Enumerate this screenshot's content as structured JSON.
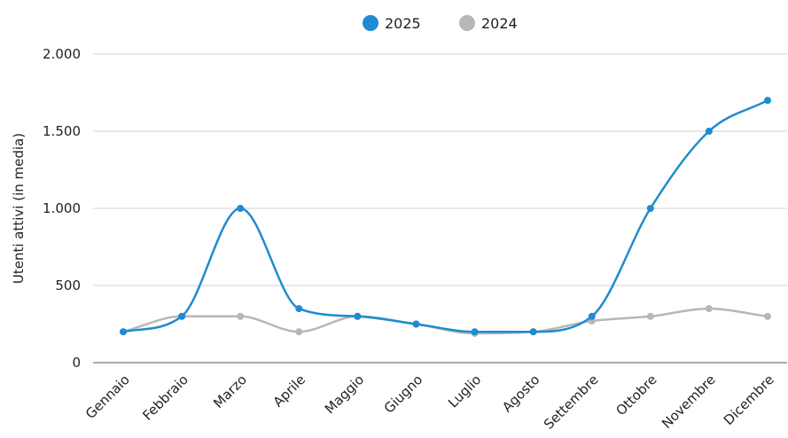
{
  "chart_data": {
    "type": "line",
    "categories": [
      "Gennaio",
      "Febbraio",
      "Marzo",
      "Aprile",
      "Maggio",
      "Giugno",
      "Luglio",
      "Agosto",
      "Settembre",
      "Ottobre",
      "Novembre",
      "Dicembre"
    ],
    "series": [
      {
        "name": "2025",
        "color": "#1f8bd0",
        "values": [
          200,
          300,
          1000,
          350,
          300,
          250,
          200,
          200,
          300,
          1000,
          1500,
          1700
        ]
      },
      {
        "name": "2024",
        "color": "#b7b7b7",
        "values": [
          200,
          300,
          300,
          200,
          300,
          250,
          190,
          200,
          270,
          300,
          350,
          300
        ]
      }
    ],
    "ylabel": "Utenti attivi (in media)",
    "ylim": [
      0,
      2000
    ],
    "yticks": [
      0,
      500,
      1000,
      1500,
      2000
    ],
    "ytick_labels": [
      "0",
      "500",
      "1.000",
      "1.500",
      "2.000"
    ],
    "grid": true,
    "legend_position": "top-center"
  }
}
